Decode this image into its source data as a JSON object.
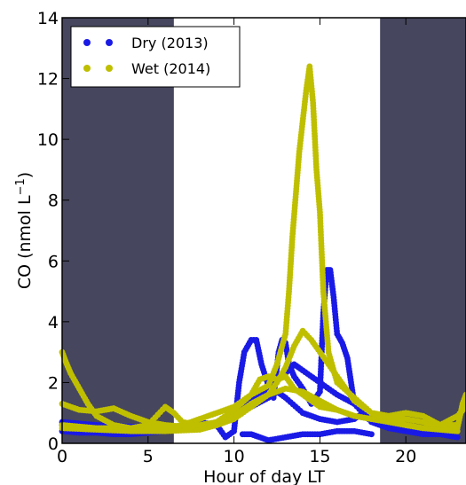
{
  "chart_data": {
    "type": "scatter",
    "title": "",
    "xlabel": "Hour of day LT",
    "ylabel_main": "CO (nmol L",
    "ylabel_sup": "−1",
    "ylabel_close": ")",
    "xlim": [
      0,
      23.5
    ],
    "ylim": [
      0,
      14
    ],
    "xticks": [
      0,
      5,
      10,
      15,
      20
    ],
    "yticks": [
      0,
      2,
      4,
      6,
      8,
      10,
      12,
      14
    ],
    "grid": false,
    "legend_position": "top-left",
    "night_bands": [
      [
        0,
        6.5
      ],
      [
        18.5,
        23.5
      ]
    ],
    "night_color": "#46465e",
    "series": [
      {
        "name": "Dry (2013)",
        "color": "#1a1ae6",
        "traces": [
          [
            [
              0,
              0.4
            ],
            [
              1,
              0.35
            ],
            [
              2,
              0.35
            ],
            [
              3,
              0.3
            ],
            [
              4,
              0.3
            ],
            [
              5,
              0.35
            ],
            [
              6,
              0.4
            ],
            [
              7,
              0.5
            ],
            [
              8,
              0.7
            ],
            [
              9,
              0.6
            ],
            [
              9.5,
              0.2
            ],
            [
              10,
              0.4
            ],
            [
              10.3,
              2.0
            ],
            [
              10.6,
              3.0
            ],
            [
              11,
              3.4
            ],
            [
              11.3,
              3.4
            ],
            [
              11.6,
              2.6
            ],
            [
              12,
              1.9
            ],
            [
              12.3,
              1.5
            ],
            [
              12.6,
              3.0
            ],
            [
              12.8,
              3.4
            ],
            [
              13,
              3.3
            ],
            [
              13.2,
              2.6
            ],
            [
              13.5,
              2.2
            ],
            [
              14,
              1.8
            ],
            [
              14.5,
              1.3
            ],
            [
              15,
              1.7
            ],
            [
              15.2,
              4.3
            ],
            [
              15.4,
              5.7
            ],
            [
              15.6,
              5.7
            ],
            [
              15.8,
              4.8
            ],
            [
              16,
              3.6
            ],
            [
              16.3,
              3.3
            ],
            [
              16.6,
              2.8
            ],
            [
              17,
              1.3
            ],
            [
              18,
              0.7
            ],
            [
              19,
              0.5
            ],
            [
              20,
              0.4
            ],
            [
              21,
              0.3
            ],
            [
              22,
              0.3
            ],
            [
              23,
              0.2
            ]
          ],
          [
            [
              0,
              0.7
            ],
            [
              2,
              0.6
            ],
            [
              4,
              0.55
            ],
            [
              6,
              0.5
            ],
            [
              8,
              0.55
            ],
            [
              9,
              0.7
            ],
            [
              10,
              1.0
            ],
            [
              11,
              1.4
            ],
            [
              12,
              1.8
            ],
            [
              13,
              2.3
            ],
            [
              13.5,
              2.6
            ],
            [
              14,
              2.4
            ],
            [
              15,
              2.0
            ],
            [
              16,
              1.6
            ],
            [
              17,
              1.3
            ],
            [
              18,
              0.9
            ],
            [
              19,
              0.7
            ],
            [
              20,
              0.6
            ],
            [
              21,
              0.5
            ],
            [
              22,
              0.5
            ],
            [
              23,
              0.5
            ]
          ],
          [
            [
              0,
              0.6
            ],
            [
              2,
              0.55
            ],
            [
              4,
              0.5
            ],
            [
              6,
              0.45
            ],
            [
              8,
              0.5
            ],
            [
              9,
              0.6
            ],
            [
              10,
              0.9
            ],
            [
              11,
              1.2
            ],
            [
              12,
              1.5
            ],
            [
              12.5,
              1.7
            ],
            [
              13,
              1.5
            ],
            [
              14,
              1.0
            ],
            [
              15,
              0.8
            ],
            [
              16,
              0.7
            ],
            [
              17,
              0.8
            ],
            [
              17.5,
              1.0
            ],
            [
              18,
              0.8
            ],
            [
              19,
              0.6
            ],
            [
              20,
              0.5
            ],
            [
              22,
              0.4
            ],
            [
              23,
              0.4
            ]
          ],
          [
            [
              10.5,
              0.3
            ],
            [
              11,
              0.3
            ],
            [
              11.5,
              0.2
            ],
            [
              12,
              0.1
            ],
            [
              13,
              0.2
            ],
            [
              14,
              0.3
            ],
            [
              15,
              0.3
            ],
            [
              16,
              0.4
            ],
            [
              17,
              0.4
            ],
            [
              18,
              0.3
            ]
          ]
        ]
      },
      {
        "name": "Wet (2014)",
        "color": "#bfbf00",
        "traces": [
          [
            [
              0,
              3.0
            ],
            [
              0.2,
              2.7
            ],
            [
              0.5,
              2.3
            ],
            [
              1,
              1.8
            ],
            [
              1.5,
              1.3
            ],
            [
              2,
              0.9
            ],
            [
              3,
              0.6
            ],
            [
              4,
              0.5
            ],
            [
              5,
              0.5
            ],
            [
              6,
              0.5
            ],
            [
              7,
              0.6
            ],
            [
              8,
              0.8
            ],
            [
              9,
              1.0
            ],
            [
              10,
              1.2
            ],
            [
              11,
              1.6
            ],
            [
              12,
              1.9
            ],
            [
              12.5,
              2.6
            ],
            [
              13,
              3.6
            ],
            [
              13.2,
              5.0
            ],
            [
              13.4,
              6.8
            ],
            [
              13.6,
              8.2
            ],
            [
              13.8,
              9.6
            ],
            [
              14,
              10.6
            ],
            [
              14.2,
              11.6
            ],
            [
              14.4,
              12.4
            ],
            [
              14.6,
              11.2
            ],
            [
              14.8,
              9.0
            ],
            [
              15,
              7.6
            ],
            [
              15.2,
              5.0
            ],
            [
              15.5,
              3.0
            ],
            [
              16,
              2.0
            ],
            [
              17,
              1.5
            ],
            [
              18,
              1.0
            ],
            [
              19,
              0.8
            ],
            [
              20,
              0.6
            ],
            [
              21,
              0.5
            ],
            [
              22,
              0.6
            ],
            [
              23,
              0.9
            ],
            [
              23.5,
              1.2
            ]
          ],
          [
            [
              0,
              1.3
            ],
            [
              1,
              1.1
            ],
            [
              2,
              1.05
            ],
            [
              3,
              1.15
            ],
            [
              4,
              0.9
            ],
            [
              5,
              0.7
            ],
            [
              6,
              0.6
            ],
            [
              7,
              0.55
            ],
            [
              8,
              0.5
            ],
            [
              9,
              0.6
            ],
            [
              10,
              0.8
            ],
            [
              11,
              1.2
            ],
            [
              12,
              1.6
            ],
            [
              12.5,
              2.0
            ],
            [
              13,
              2.5
            ],
            [
              13.5,
              3.2
            ],
            [
              14,
              3.7
            ],
            [
              14.5,
              3.4
            ],
            [
              15,
              3.0
            ],
            [
              15.5,
              2.6
            ],
            [
              16,
              2.2
            ],
            [
              16.5,
              1.8
            ],
            [
              17,
              1.4
            ],
            [
              18,
              1.0
            ],
            [
              19,
              0.9
            ],
            [
              20,
              0.8
            ],
            [
              21,
              0.7
            ],
            [
              22,
              0.6
            ],
            [
              23,
              0.6
            ]
          ],
          [
            [
              0,
              0.6
            ],
            [
              1,
              0.55
            ],
            [
              2,
              0.5
            ],
            [
              3,
              0.5
            ],
            [
              4,
              0.5
            ],
            [
              5,
              0.6
            ],
            [
              6,
              1.2
            ],
            [
              6.5,
              1.0
            ],
            [
              7,
              0.7
            ],
            [
              8,
              0.6
            ],
            [
              9,
              0.7
            ],
            [
              10,
              1.1
            ],
            [
              11,
              1.6
            ],
            [
              11.5,
              2.1
            ],
            [
              12,
              2.2
            ],
            [
              12.5,
              2.1
            ],
            [
              13,
              2.2
            ],
            [
              13.5,
              1.8
            ],
            [
              14,
              1.6
            ],
            [
              14.5,
              1.4
            ],
            [
              15,
              1.2
            ],
            [
              16,
              1.1
            ],
            [
              17,
              0.9
            ],
            [
              18,
              0.8
            ],
            [
              19,
              0.9
            ],
            [
              20,
              1.0
            ],
            [
              21,
              0.9
            ],
            [
              22,
              0.6
            ],
            [
              23,
              0.5
            ],
            [
              23.3,
              1.3
            ],
            [
              23.5,
              1.6
            ]
          ],
          [
            [
              0,
              0.5
            ],
            [
              2,
              0.45
            ],
            [
              4,
              0.4
            ],
            [
              6,
              0.4
            ],
            [
              8,
              0.45
            ],
            [
              9,
              0.6
            ],
            [
              10,
              0.9
            ],
            [
              11,
              1.3
            ],
            [
              12,
              1.6
            ],
            [
              13,
              1.8
            ],
            [
              14,
              1.7
            ],
            [
              15,
              1.4
            ],
            [
              16,
              1.1
            ],
            [
              17,
              0.9
            ],
            [
              18,
              0.8
            ],
            [
              19,
              0.7
            ],
            [
              20,
              0.6
            ],
            [
              21,
              0.5
            ],
            [
              22,
              0.45
            ],
            [
              23,
              0.4
            ]
          ]
        ]
      }
    ]
  }
}
